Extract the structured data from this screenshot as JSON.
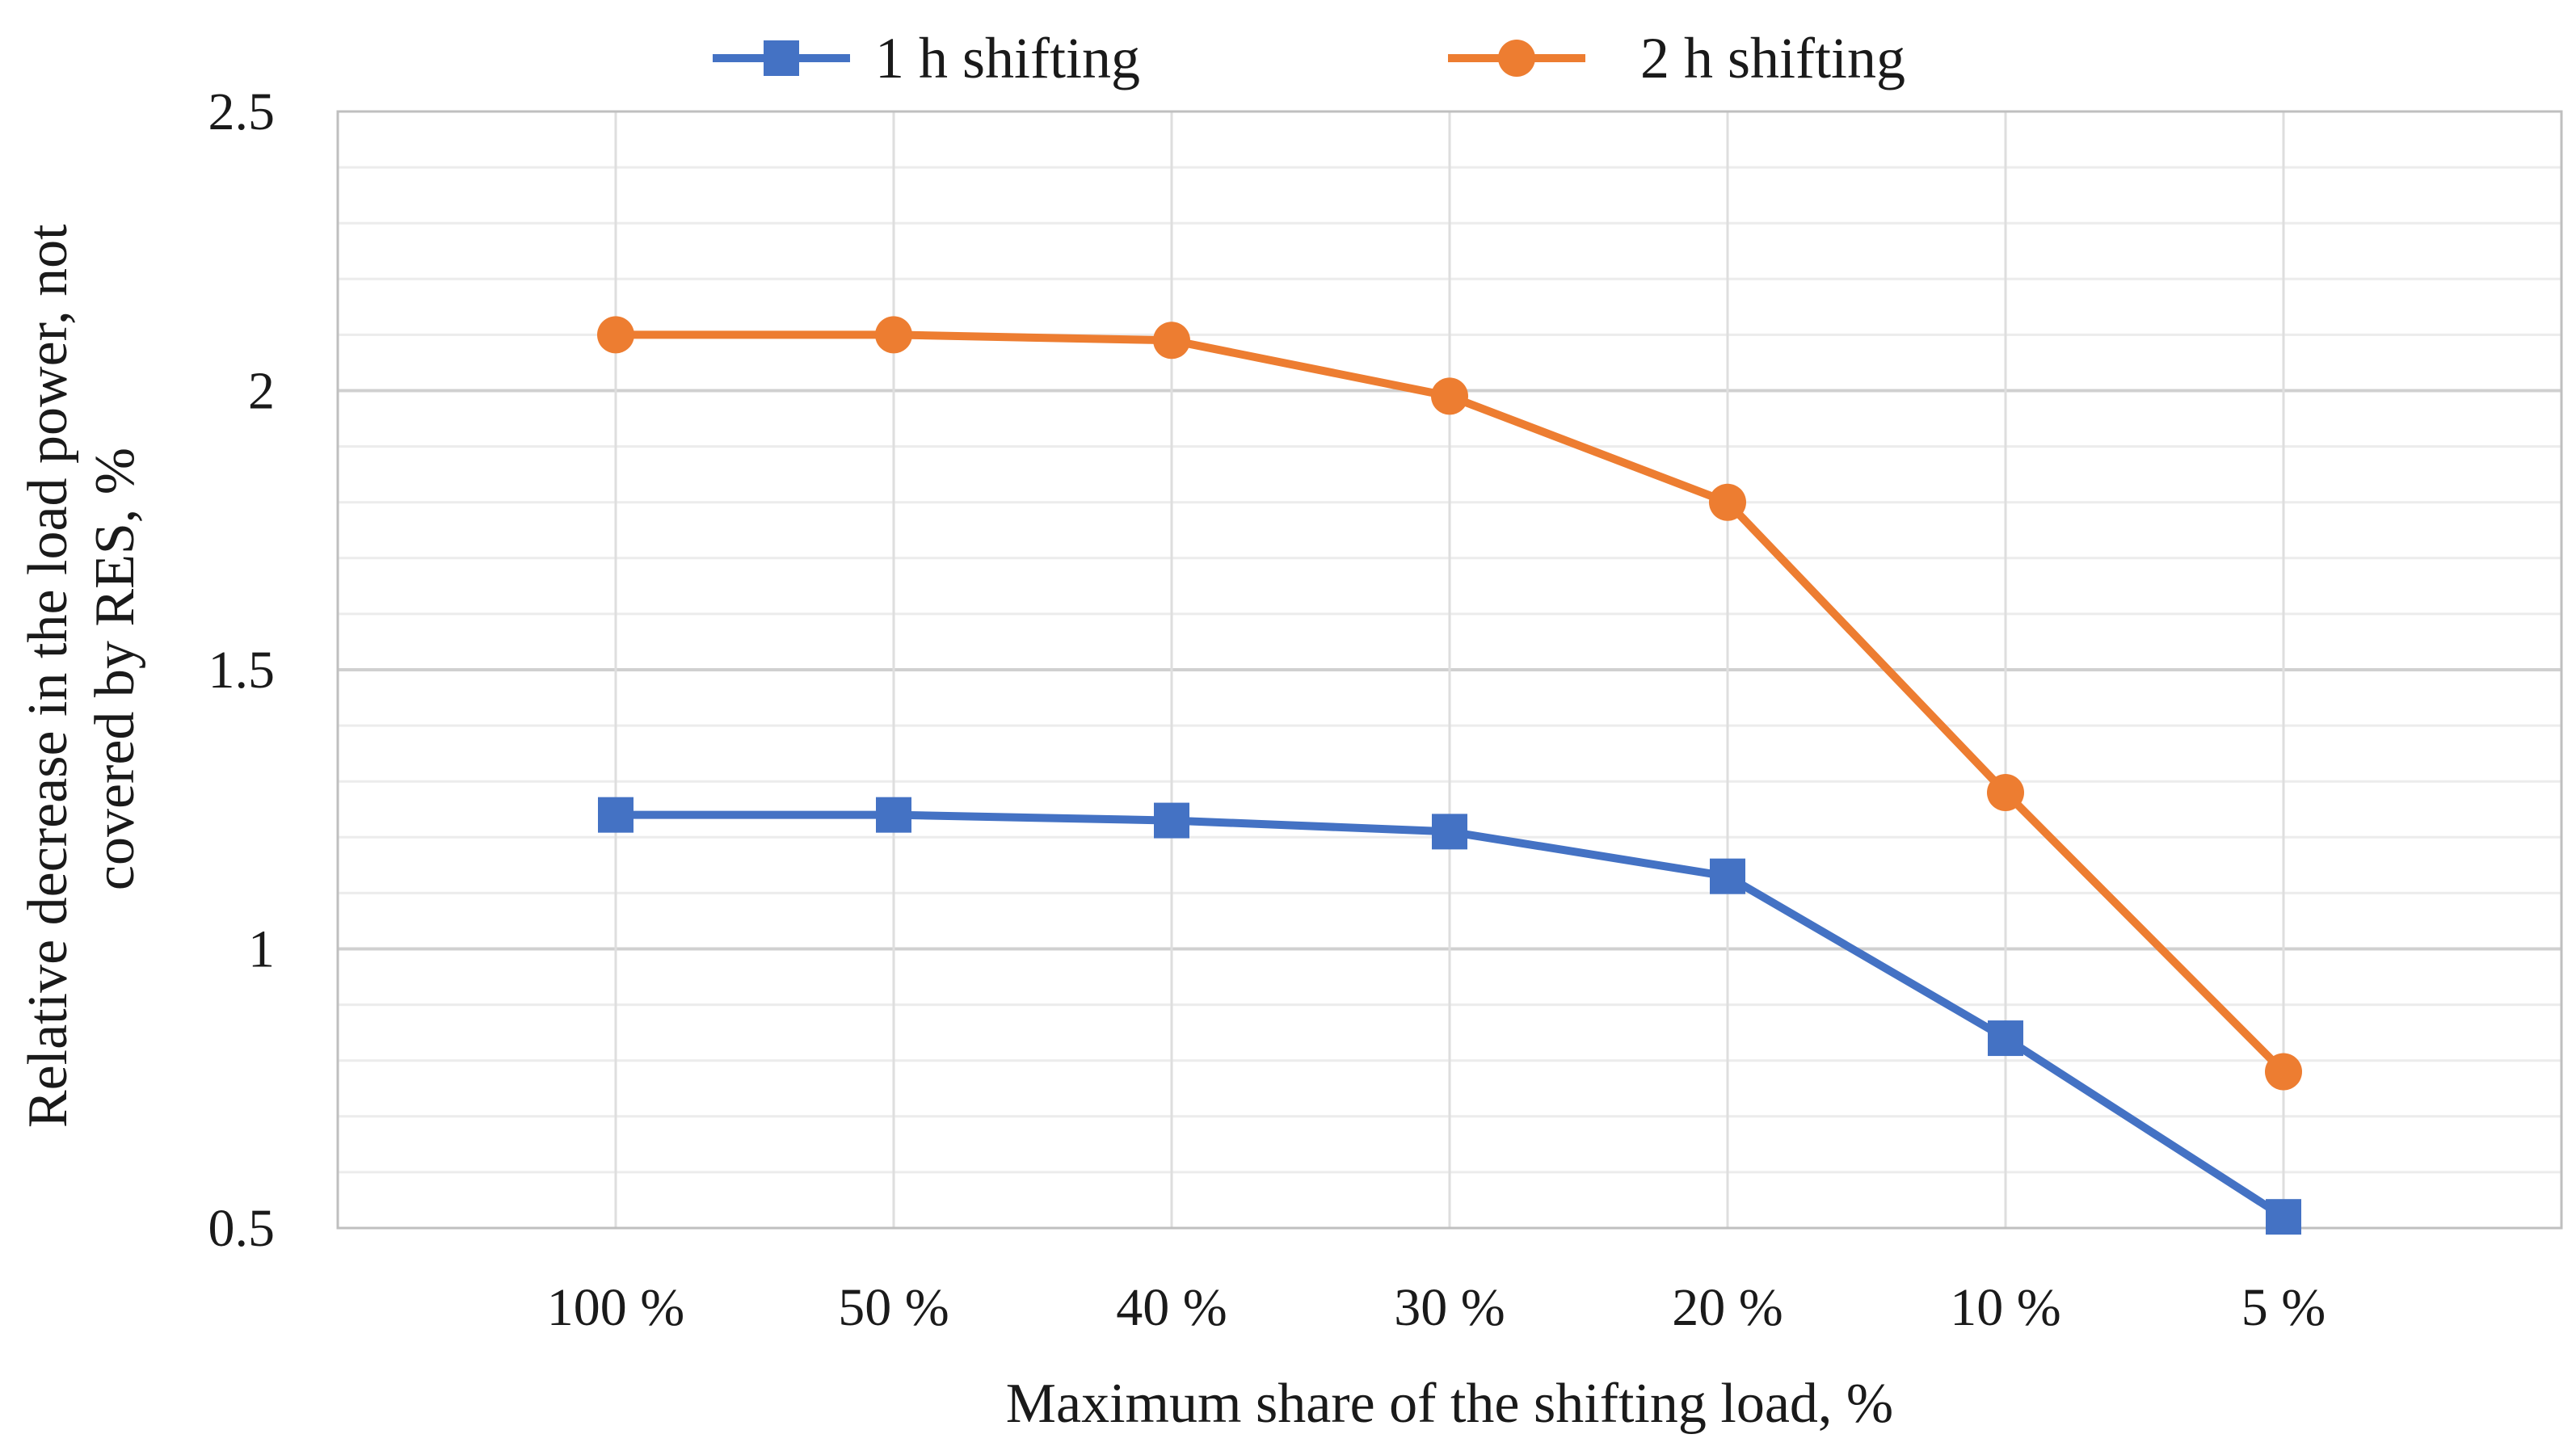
{
  "chart_data": {
    "type": "line",
    "title": "",
    "xlabel": "Maximum share of the shifting load, %",
    "ylabel_lines": [
      "Relative decrease in the load power, not",
      "covered by RES, %"
    ],
    "categories": [
      "100 %",
      "50 %",
      "40 %",
      "30 %",
      "20 %",
      "10 %",
      "5 %"
    ],
    "ylim": [
      0.5,
      2.5
    ],
    "yticks": [
      0.5,
      1,
      1.5,
      2,
      2.5
    ],
    "ytick_labels": [
      "0.5",
      "1",
      "1.5",
      "2",
      "2.5"
    ],
    "minor_step": 0.1,
    "grid": true,
    "legend_position": "top",
    "series": [
      {
        "name": "1 h shifting",
        "marker": "square",
        "color": "#4472C4",
        "values": [
          1.24,
          1.24,
          1.23,
          1.21,
          1.13,
          0.84,
          0.52
        ]
      },
      {
        "name": "2 h shifting",
        "marker": "circle",
        "color": "#ED7D31",
        "values": [
          2.1,
          2.1,
          2.09,
          1.99,
          1.8,
          1.28,
          0.78
        ]
      }
    ]
  }
}
